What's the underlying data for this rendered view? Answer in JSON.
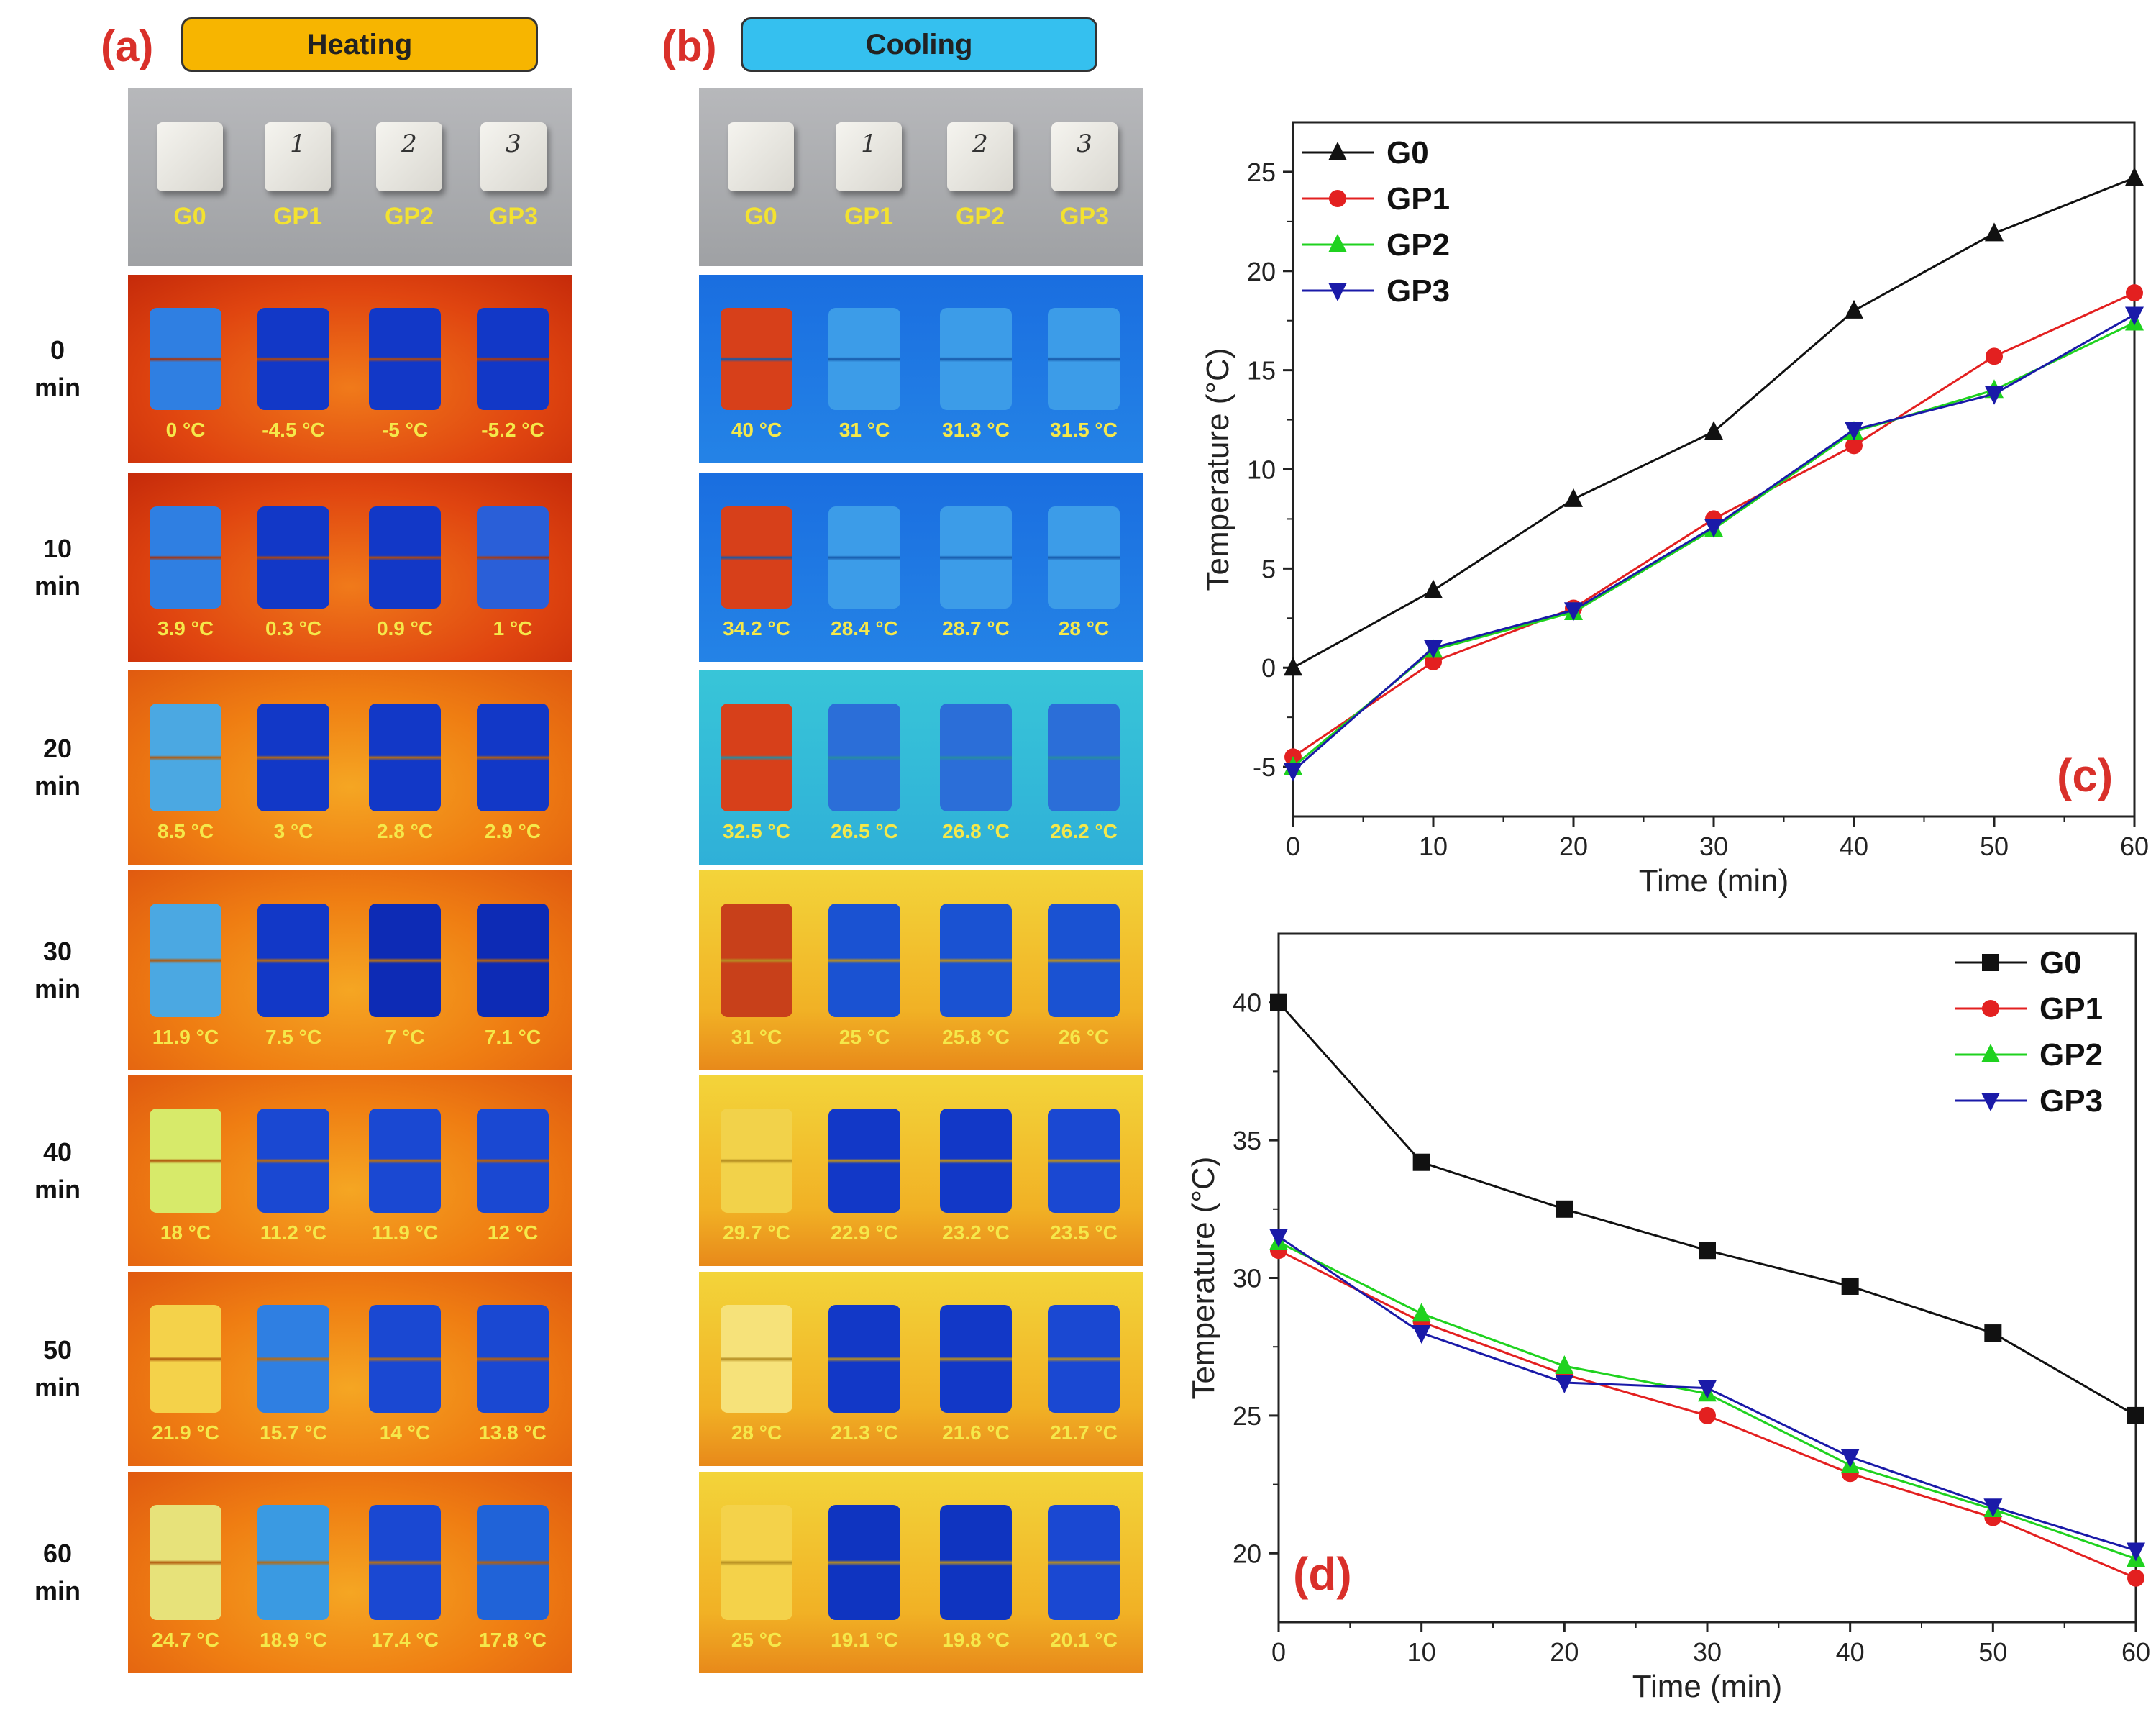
{
  "panels": {
    "a": {
      "letter": "(a)",
      "title": "Heating",
      "color": "#f7b500"
    },
    "b": {
      "letter": "(b)",
      "title": "Cooling",
      "color": "#35c0ef"
    }
  },
  "samples": [
    "G0",
    "GP1",
    "GP2",
    "GP3"
  ],
  "cube_marks": [
    "",
    "1",
    "2",
    "3"
  ],
  "rows": [
    {
      "time": "0",
      "unit": "min"
    },
    {
      "time": "10",
      "unit": "min"
    },
    {
      "time": "20",
      "unit": "min"
    },
    {
      "time": "30",
      "unit": "min"
    },
    {
      "time": "40",
      "unit": "min"
    },
    {
      "time": "50",
      "unit": "min"
    },
    {
      "time": "60",
      "unit": "min"
    }
  ],
  "heating_labels": [
    [
      "0 °C",
      "-4.5 °C",
      "-5 °C",
      "-5.2 °C"
    ],
    [
      "3.9 °C",
      "0.3 °C",
      "0.9 °C",
      "1 °C"
    ],
    [
      "8.5 °C",
      "3 °C",
      "2.8 °C",
      "2.9 °C"
    ],
    [
      "11.9 °C",
      "7.5 °C",
      "7 °C",
      "7.1 °C"
    ],
    [
      "18 °C",
      "11.2 °C",
      "11.9 °C",
      "12 °C"
    ],
    [
      "21.9 °C",
      "15.7 °C",
      "14 °C",
      "13.8 °C"
    ],
    [
      "24.7 °C",
      "18.9 °C",
      "17.4 °C",
      "17.8 °C"
    ]
  ],
  "cooling_labels": [
    [
      "40 °C",
      "31 °C",
      "31.3 °C",
      "31.5 °C"
    ],
    [
      "34.2 °C",
      "28.4 °C",
      "28.7 °C",
      "28 °C"
    ],
    [
      "32.5 °C",
      "26.5 °C",
      "26.8 °C",
      "26.2 °C"
    ],
    [
      "31 °C",
      "25 °C",
      "25.8 °C",
      "26 °C"
    ],
    [
      "29.7 °C",
      "22.9 °C",
      "23.2 °C",
      "23.5 °C"
    ],
    [
      "28 °C",
      "21.3 °C",
      "21.6 °C",
      "21.7 °C"
    ],
    [
      "25 °C",
      "19.1 °C",
      "19.8 °C",
      "20.1 °C"
    ]
  ],
  "chart_data": [
    {
      "id": "c",
      "type": "line",
      "panel_label": "(c)",
      "xlabel": "Time (min)",
      "ylabel": "Temperature (°C)",
      "x": [
        0,
        10,
        20,
        30,
        40,
        50,
        60
      ],
      "xlim": [
        0,
        60
      ],
      "ylim": [
        -7.5,
        27.5
      ],
      "xticks": [
        0,
        10,
        20,
        30,
        40,
        50,
        60
      ],
      "yticks": [
        -5,
        0,
        5,
        10,
        15,
        20,
        25
      ],
      "legend_position": "top-left",
      "series": [
        {
          "name": "G0",
          "color": "#111111",
          "marker": "triangle-up",
          "values": [
            0,
            3.9,
            8.5,
            11.9,
            18,
            21.9,
            24.7
          ]
        },
        {
          "name": "GP1",
          "color": "#e32020",
          "marker": "circle",
          "values": [
            -4.5,
            0.3,
            3,
            7.5,
            11.2,
            15.7,
            18.9
          ]
        },
        {
          "name": "GP2",
          "color": "#1fd21f",
          "marker": "triangle-up",
          "values": [
            -5,
            0.9,
            2.8,
            7,
            11.9,
            14,
            17.4
          ]
        },
        {
          "name": "GP3",
          "color": "#1a1aa8",
          "marker": "triangle-down",
          "values": [
            -5.2,
            1,
            2.9,
            7.1,
            12,
            13.8,
            17.8
          ]
        }
      ]
    },
    {
      "id": "d",
      "type": "line",
      "panel_label": "(d)",
      "xlabel": "Time (min)",
      "ylabel": "Temperature (°C)",
      "x": [
        0,
        10,
        20,
        30,
        40,
        50,
        60
      ],
      "xlim": [
        0,
        60
      ],
      "ylim": [
        17.5,
        42.5
      ],
      "xticks": [
        0,
        10,
        20,
        30,
        40,
        50,
        60
      ],
      "yticks": [
        20,
        25,
        30,
        35,
        40
      ],
      "legend_position": "top-right",
      "series": [
        {
          "name": "G0",
          "color": "#111111",
          "marker": "square",
          "values": [
            40,
            34.2,
            32.5,
            31,
            29.7,
            28,
            25
          ]
        },
        {
          "name": "GP1",
          "color": "#e32020",
          "marker": "circle",
          "values": [
            31,
            28.4,
            26.5,
            25,
            22.9,
            21.3,
            19.1
          ]
        },
        {
          "name": "GP2",
          "color": "#1fd21f",
          "marker": "triangle-up",
          "values": [
            31.3,
            28.7,
            26.8,
            25.8,
            23.2,
            21.6,
            19.8
          ]
        },
        {
          "name": "GP3",
          "color": "#1a1aa8",
          "marker": "triangle-down",
          "values": [
            31.5,
            28,
            26.2,
            26,
            23.5,
            21.7,
            20.1
          ]
        }
      ]
    }
  ]
}
